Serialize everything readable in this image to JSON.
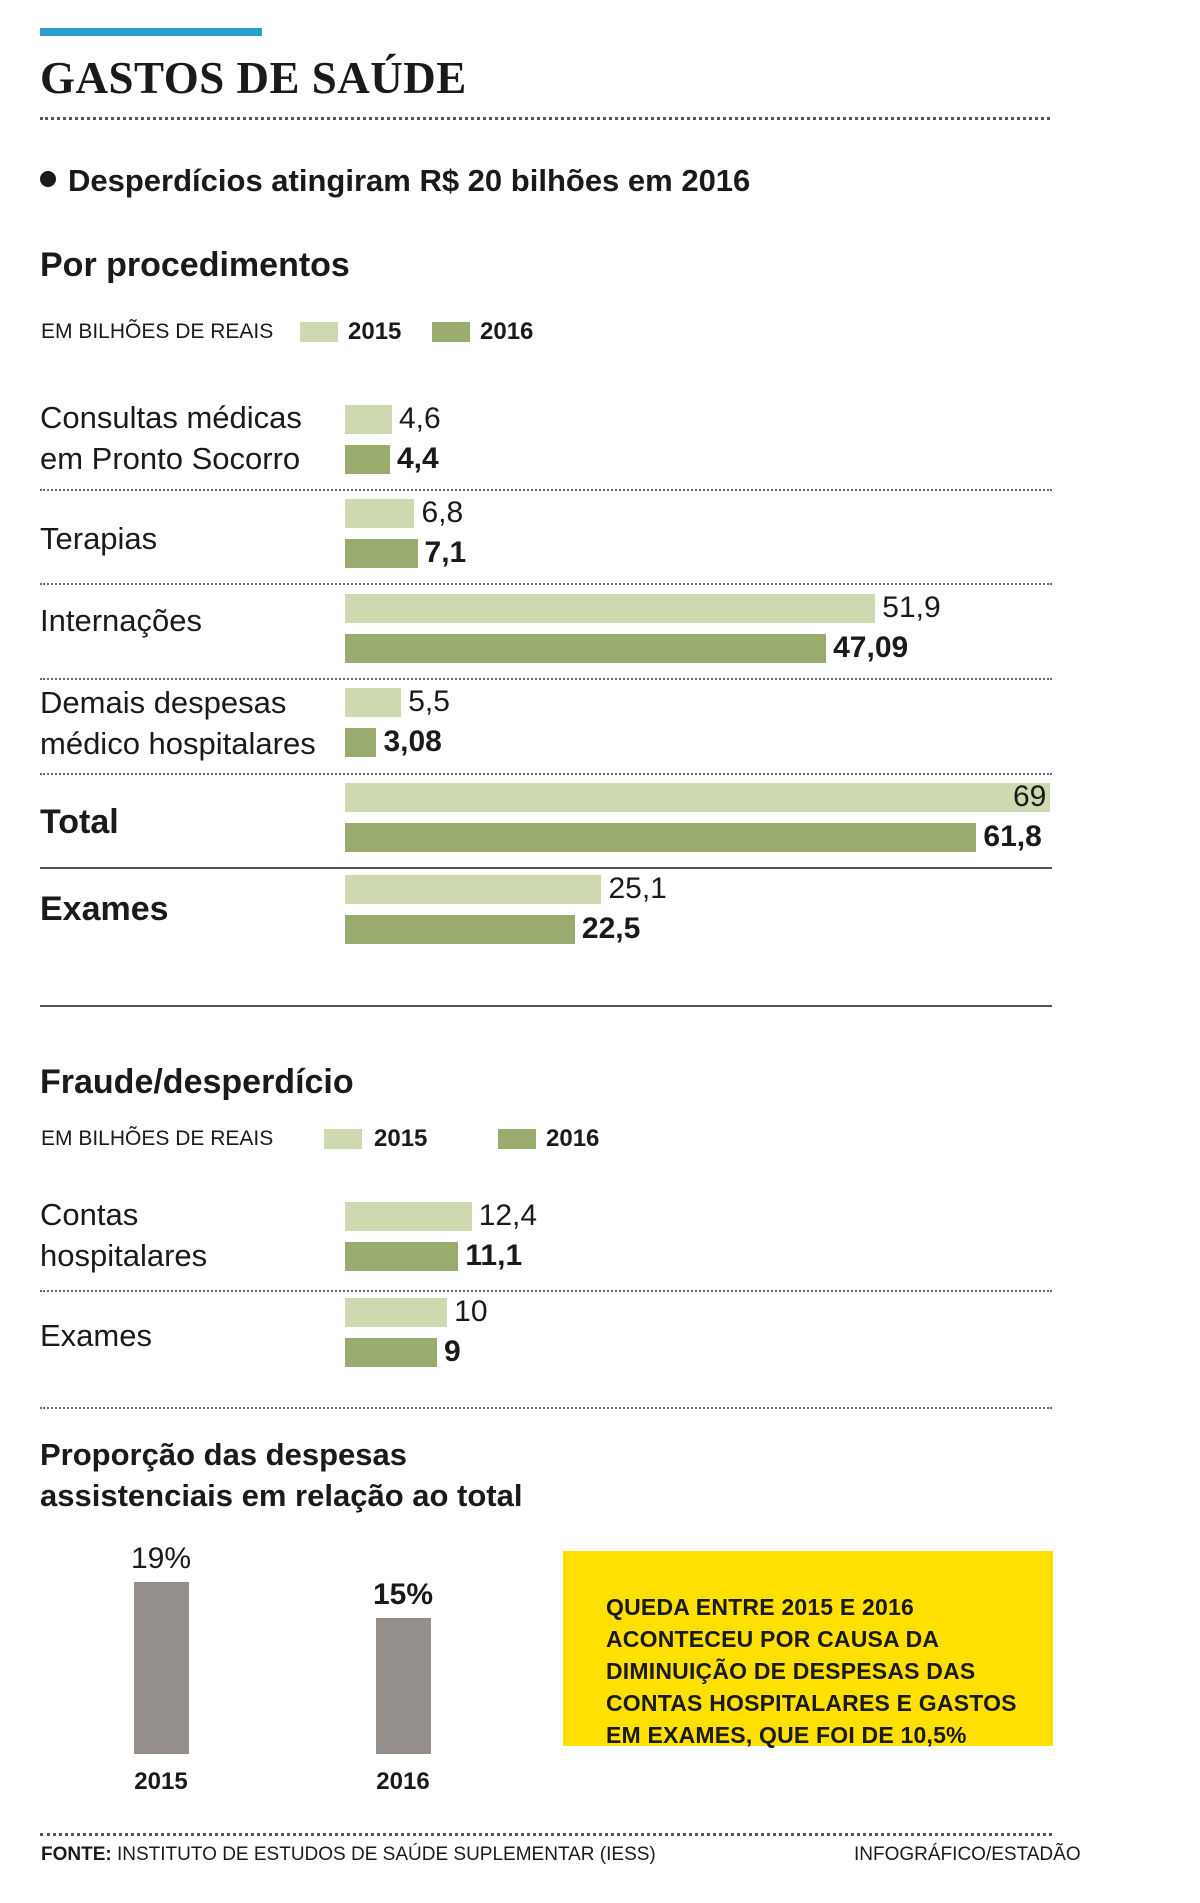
{
  "title": "GASTOS DE SAÚDE",
  "lede": "Desperdícios atingiram R$ 20 bilhões em 2016",
  "colors": {
    "y2015": "#cfd9b1",
    "y2016": "#99ab6e",
    "grey_bar": "#948f8a",
    "note_bg": "#ffe000",
    "top_accent": "#2b9fd1"
  },
  "chart_data": [
    {
      "type": "bar",
      "title": "Por procedimentos",
      "unit_label": "EM BILHÕES DE REAIS",
      "legend": [
        "2015",
        "2016"
      ],
      "categories": [
        "Consultas médicas em Pronto Socorro",
        "Terapias",
        "Internações",
        "Demais despesas médico hospitalares",
        "Total",
        "Exames"
      ],
      "series": [
        {
          "name": "2015",
          "values": [
            4.6,
            6.8,
            51.9,
            5.5,
            69,
            25.1
          ],
          "labels": [
            "4,6",
            "6,8",
            "51,9",
            "5,5",
            "69",
            "25,1"
          ]
        },
        {
          "name": "2016",
          "values": [
            4.4,
            7.1,
            47.09,
            3.08,
            61.8,
            22.5
          ],
          "labels": [
            "4,4",
            "7,1",
            "47,09",
            "3,08",
            "61,8",
            "22,5"
          ]
        }
      ],
      "xlim": [
        0,
        69
      ]
    },
    {
      "type": "bar",
      "title": "Fraude/desperdício",
      "unit_label": "EM BILHÕES DE REAIS",
      "legend": [
        "2015",
        "2016"
      ],
      "categories": [
        "Contas hospitalares",
        "Exames"
      ],
      "series": [
        {
          "name": "2015",
          "values": [
            12.4,
            10
          ],
          "labels": [
            "12,4",
            "10"
          ]
        },
        {
          "name": "2016",
          "values": [
            11.1,
            9
          ],
          "labels": [
            "11,1",
            "9"
          ]
        }
      ],
      "xlim": [
        0,
        69
      ]
    },
    {
      "type": "bar",
      "title": "Proporção das despesas assistenciais em relação ao total",
      "categories": [
        "2015",
        "2016"
      ],
      "values": [
        19,
        15
      ],
      "labels": [
        "19%",
        "15%"
      ],
      "ylim": [
        0,
        19
      ]
    }
  ],
  "chart1": {
    "rows": [
      {
        "label_line1": "Consultas médicas",
        "label_line2": "em Pronto Socorro"
      },
      {
        "label_line1": "Terapias"
      },
      {
        "label_line1": "Internações"
      },
      {
        "label_line1": "Demais despesas",
        "label_line2": "médico hospitalares"
      },
      {
        "label_line1": "Total"
      },
      {
        "label_line1": "Exames"
      }
    ]
  },
  "chart2": {
    "rows": [
      {
        "label_line1": "Contas",
        "label_line2": "hospitalares"
      },
      {
        "label_line1": "Exames"
      }
    ]
  },
  "chart3": {
    "title_line1": "Proporção das despesas",
    "title_line2": "assistenciais em relação ao total"
  },
  "note": "QUEDA ENTRE 2015 E 2016 ACONTECEU POR CAUSA DA DIMINUIÇÃO DE DESPESAS DAS CONTAS HOSPITALARES E GASTOS EM EXAMES, QUE FOI DE 10,5%",
  "footer": {
    "source_label": "FONTE:",
    "source_text": "INSTITUTO DE ESTUDOS DE SAÚDE SUPLEMENTAR (IESS)",
    "credit": "INFOGRÁFICO/ESTADÃO"
  }
}
